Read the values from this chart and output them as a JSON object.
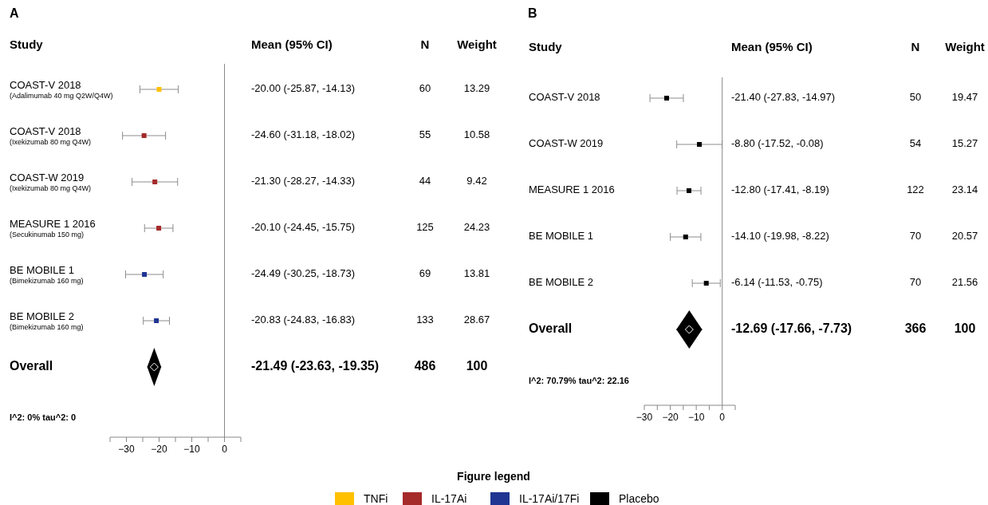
{
  "chart_data": [
    {
      "type": "scatter",
      "title": "A",
      "orientation": "horizontal",
      "legend": "bottom",
      "legend_title": "Figure legend",
      "categories": [
        "COAST-V 2018\n(Adalimumab 40 mg Q2W/Q4W)",
        "COAST-V 2018\n(Ixekizumab 80 mg Q4W)",
        "COAST-W 2019\n(Ixekizumab 80 mg Q4W)",
        "MEASURE 1 2016\n(Secukinumab 150 mg)",
        "BE MOBILE 1\n(Bimekizumab 160 mg)",
        "BE MOBILE 2\n(Bimekizumab 160 mg)",
        "Overall"
      ],
      "series": [
        {
          "name": "TNFi",
          "color": "#ffc000",
          "marker": "square",
          "values": [
            -20.0,
            null,
            null,
            null,
            null,
            null,
            null
          ],
          "errors": [
            [
              -25.87,
              -14.13
            ],
            null,
            null,
            null,
            null,
            null,
            null
          ]
        },
        {
          "name": "IL-17Ai",
          "color": "#a52a2a",
          "marker": "square",
          "values": [
            null,
            -24.6,
            -21.3,
            -20.1,
            null,
            null,
            null
          ],
          "errors": [
            null,
            [
              -31.18,
              -18.02
            ],
            [
              -28.27,
              -14.33
            ],
            [
              -24.45,
              -15.75
            ],
            null,
            null,
            null
          ]
        },
        {
          "name": "IL-17Ai/17Fi",
          "color": "#1f3591",
          "marker": "square",
          "values": [
            null,
            null,
            null,
            null,
            -24.49,
            -20.83,
            null
          ],
          "errors": [
            null,
            null,
            null,
            null,
            [
              -30.25,
              -18.73
            ],
            [
              -24.83,
              -16.83
            ],
            null
          ]
        },
        {
          "color": "#000000",
          "marker": "diamond",
          "values": [
            null,
            null,
            null,
            null,
            null,
            null,
            -21.49
          ],
          "errors": [
            null,
            null,
            null,
            null,
            null,
            null,
            [
              -23.63,
              -19.35
            ]
          ]
        }
      ],
      "xlim": [
        -35,
        5
      ],
      "xticks": [
        {
          "value": -35,
          "label": null
        },
        -30,
        {
          "value": -25,
          "label": null
        },
        -20,
        {
          "value": -15,
          "label": null
        },
        -10,
        {
          "value": -5,
          "label": null
        },
        0,
        {
          "value": 5,
          "label": null
        }
      ],
      "ref_lines": [
        {
          "axis": "x",
          "value": 0,
          "color": "#888888"
        }
      ],
      "annotations": [
        "Study",
        "Mean (95% CI)",
        "N",
        "Weight",
        "-20.00 (-25.87, -14.13)",
        "60",
        "13.29",
        "-24.60 (-31.18, -18.02)",
        "55",
        "10.58",
        "-21.30 (-28.27, -14.33)",
        "44",
        "9.42",
        "-20.10 (-24.45, -15.75)",
        "125",
        "24.23",
        "-24.49 (-30.25, -18.73)",
        "69",
        "13.81",
        "-20.83 (-24.83, -16.83)",
        "133",
        "28.67",
        "-21.49 (-23.63, -19.35)",
        "486",
        "100",
        "I^2: 0% tau^2: 0"
      ]
    },
    {
      "type": "scatter",
      "title": "B",
      "orientation": "horizontal",
      "legend": "bottom",
      "categories": [
        "COAST-V 2018",
        "COAST-W 2019",
        "MEASURE 1 2016",
        "BE MOBILE 1",
        "BE MOBILE 2",
        "Overall"
      ],
      "series": [
        {
          "name": "Placebo",
          "color": "#000000",
          "marker": "square",
          "values": [
            -21.4,
            -8.8,
            -12.8,
            -14.1,
            -6.14,
            null
          ],
          "errors": [
            [
              -27.83,
              -14.97
            ],
            [
              -17.52,
              -0.08
            ],
            [
              -17.41,
              -8.19
            ],
            [
              -19.98,
              -8.22
            ],
            [
              -11.53,
              -0.75
            ],
            null
          ]
        },
        {
          "color": "#000000",
          "marker": "diamond",
          "values": [
            null,
            null,
            null,
            null,
            null,
            -12.69
          ],
          "errors": [
            null,
            null,
            null,
            null,
            null,
            [
              -17.66,
              -7.73
            ]
          ]
        }
      ],
      "xlim": [
        -30,
        5
      ],
      "xticks": [
        -30,
        {
          "value": -25,
          "label": null
        },
        -20,
        {
          "value": -15,
          "label": null
        },
        -10,
        {
          "value": -5,
          "label": null
        },
        0,
        {
          "value": 5,
          "label": null
        }
      ],
      "ref_lines": [
        {
          "axis": "x",
          "value": 0,
          "color": "#888888"
        }
      ],
      "annotations": [
        "Study",
        "Mean (95% CI)",
        "N",
        "Weight",
        "-21.40 (-27.83, -14.97)",
        "50",
        "19.47",
        "-8.80 (-17.52, -0.08)",
        "54",
        "15.27",
        "-12.80 (-17.41, -8.19)",
        "122",
        "23.14",
        "-14.10 (-19.98, -8.22)",
        "70",
        "20.57",
        "-6.14 (-11.53, -0.75)",
        "70",
        "21.56",
        "-12.69 (-17.66, -7.73)",
        "366",
        "100",
        "I^2: 70.79% tau^2: 22.16"
      ]
    }
  ]
}
